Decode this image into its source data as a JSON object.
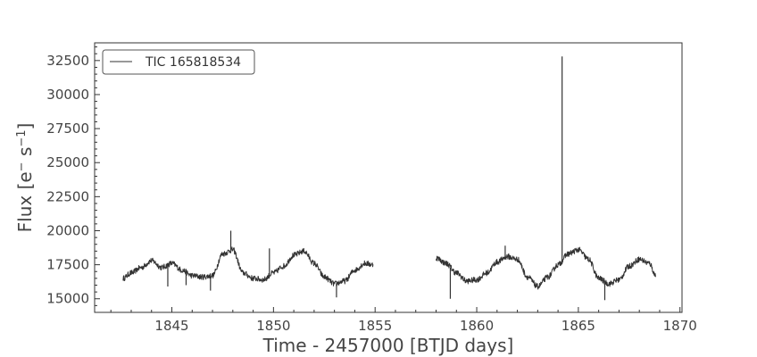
{
  "chart_data": {
    "type": "line",
    "title": "",
    "xlabel": "Time - 2457000 [BTJD days]",
    "ylabel_main": "Flux [e",
    "ylabel_sup1": "−",
    "ylabel_mid": " s",
    "ylabel_sup2": "−1",
    "ylabel_end": "]",
    "xlim": [
      1841.2,
      1870.1
    ],
    "ylim": [
      14000,
      33800
    ],
    "x_ticks": [
      1845,
      1850,
      1855,
      1860,
      1865,
      1870
    ],
    "y_ticks": [
      15000,
      17500,
      20000,
      22500,
      25000,
      27500,
      30000,
      32500
    ],
    "x_ticks_labels": [
      "1845",
      "1850",
      "1855",
      "1860",
      "1865",
      "1870"
    ],
    "y_ticks_labels": [
      "15000",
      "17500",
      "20000",
      "22500",
      "25000",
      "27500",
      "30000",
      "32500"
    ],
    "grid": false,
    "legend_position": "top-left",
    "line_color": "#333333",
    "series": [
      {
        "name": "TIC 165818534",
        "segments": [
          {
            "x": [
              1842.6,
              1843.0,
              1843.5,
              1844.0,
              1844.5,
              1845.0,
              1845.5,
              1846.0,
              1846.5,
              1847.0,
              1847.5,
              1848.0,
              1848.5,
              1849.0,
              1849.5,
              1850.0,
              1850.5,
              1851.0,
              1851.5,
              1852.0,
              1852.5,
              1853.0,
              1853.5,
              1854.0,
              1854.5,
              1854.9
            ],
            "y": [
              16500,
              16900,
              17300,
              17800,
              17300,
              17600,
              17100,
              16700,
              16600,
              16700,
              18300,
              18600,
              16900,
              16500,
              16400,
              16900,
              17400,
              18200,
              18500,
              17600,
              16600,
              16100,
              16300,
              17100,
              17600,
              17500
            ]
          },
          {
            "x": [
              1858.0,
              1858.5,
              1859.0,
              1859.5,
              1860.0,
              1860.5,
              1861.0,
              1861.5,
              1862.0,
              1862.5,
              1863.0,
              1863.5,
              1864.0,
              1864.5,
              1865.0,
              1865.5,
              1866.0,
              1866.5,
              1867.0,
              1867.5,
              1868.0,
              1868.5,
              1868.8
            ],
            "y": [
              18000,
              17600,
              16900,
              16300,
              16400,
              16900,
              17700,
              18100,
              17900,
              16600,
              15900,
              16600,
              17500,
              18300,
              18600,
              17900,
              16500,
              16100,
              16400,
              17400,
              17900,
              17600,
              16700
            ]
          }
        ],
        "spikes": [
          {
            "x": 1864.2,
            "y": 32800
          },
          {
            "x": 1847.9,
            "y": 20000
          },
          {
            "x": 1849.8,
            "y": 18700
          },
          {
            "x": 1861.4,
            "y": 18900
          },
          {
            "x": 1844.8,
            "y": 15900
          },
          {
            "x": 1845.7,
            "y": 16000
          },
          {
            "x": 1846.9,
            "y": 15600
          },
          {
            "x": 1853.1,
            "y": 15100
          },
          {
            "x": 1858.7,
            "y": 15000
          },
          {
            "x": 1866.3,
            "y": 14900
          }
        ]
      }
    ]
  }
}
